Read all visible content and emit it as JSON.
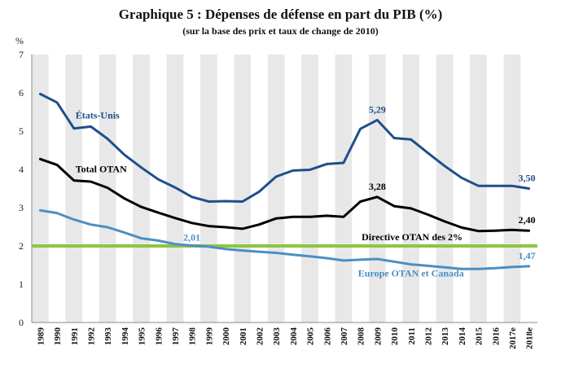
{
  "chart_data": {
    "type": "line",
    "title": "Graphique 5 : Dépenses de défense en part du PIB (%)",
    "subtitle": "(sur la base des prix et taux de change de 2010)",
    "ylabel": "%",
    "xlabel": "",
    "ylim": [
      0,
      7
    ],
    "yticks": [
      "0",
      "1",
      "2",
      "3",
      "4",
      "5",
      "6",
      "7"
    ],
    "categories": [
      "1989",
      "1990",
      "1991",
      "1992",
      "1993",
      "1994",
      "1995",
      "1996",
      "1997",
      "1998",
      "1999",
      "2000",
      "2001",
      "2002",
      "2003",
      "2004",
      "2005",
      "2006",
      "2007",
      "2008",
      "2009",
      "2010",
      "2011",
      "2012",
      "2013",
      "2014",
      "2015",
      "2016",
      "2017e",
      "2018e"
    ],
    "grid": false,
    "series": [
      {
        "name": "États-Unis",
        "color": "#1f4e8c",
        "values": [
          5.97,
          5.75,
          5.07,
          5.12,
          4.8,
          4.38,
          4.05,
          3.74,
          3.53,
          3.28,
          3.16,
          3.17,
          3.16,
          3.42,
          3.81,
          3.97,
          3.99,
          4.14,
          4.17,
          5.06,
          5.29,
          4.82,
          4.78,
          4.43,
          4.09,
          3.78,
          3.57,
          3.57,
          3.57,
          3.5
        ]
      },
      {
        "name": "Total OTAN",
        "color": "#000000",
        "values": [
          4.27,
          4.12,
          3.71,
          3.68,
          3.52,
          3.24,
          3.02,
          2.87,
          2.73,
          2.6,
          2.52,
          2.49,
          2.45,
          2.56,
          2.72,
          2.76,
          2.76,
          2.79,
          2.76,
          3.16,
          3.28,
          3.04,
          2.98,
          2.82,
          2.64,
          2.48,
          2.39,
          2.4,
          2.42,
          2.4
        ]
      },
      {
        "name": "Europe OTAN et Canada",
        "color": "#4a8fc4",
        "values": [
          2.93,
          2.86,
          2.69,
          2.56,
          2.49,
          2.35,
          2.2,
          2.14,
          2.05,
          2.01,
          1.98,
          1.92,
          1.88,
          1.85,
          1.82,
          1.77,
          1.73,
          1.68,
          1.62,
          1.64,
          1.66,
          1.59,
          1.52,
          1.48,
          1.44,
          1.4,
          1.4,
          1.42,
          1.45,
          1.47
        ]
      }
    ],
    "reference_line": {
      "label": "Directive OTAN des 2%",
      "value": 2,
      "color": "#8cc63f"
    },
    "annotations": [
      {
        "text": "5,29",
        "series": "États-Unis",
        "category": "2009"
      },
      {
        "text": "3,50",
        "series": "États-Unis",
        "category": "2018e"
      },
      {
        "text": "3,28",
        "series": "Total OTAN",
        "category": "2009"
      },
      {
        "text": "2,40",
        "series": "Total OTAN",
        "category": "2018e"
      },
      {
        "text": "2,01",
        "series": "Europe OTAN et Canada",
        "category": "1998"
      },
      {
        "text": "1,47",
        "series": "Europe OTAN et Canada",
        "category": "2018e"
      }
    ]
  }
}
